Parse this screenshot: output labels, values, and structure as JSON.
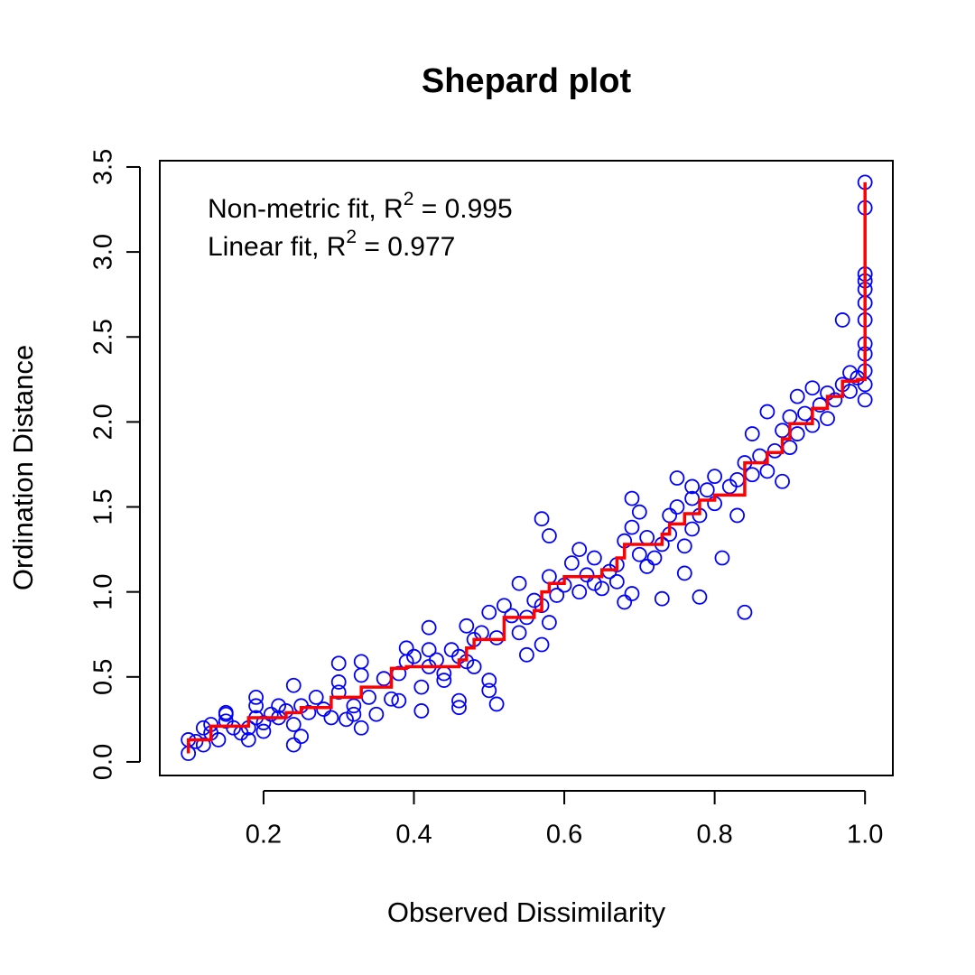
{
  "chart_data": {
    "type": "scatter",
    "title": "Shepard plot",
    "x_label": "Observed Dissimilarity",
    "y_label": "Ordination Distance",
    "annotations": [
      {
        "prefix": "Non-metric fit, R",
        "superscript": "2",
        "suffix": " = 0.995"
      },
      {
        "prefix": "Linear fit, R",
        "superscript": "2",
        "suffix": " = 0.977"
      }
    ],
    "xlim": [
      0.062,
      1.037
    ],
    "ylim": [
      -0.08,
      3.537
    ],
    "xticks": [
      0.2,
      0.4,
      0.6,
      0.8,
      {
        "value": 1,
        "label": "1.0"
      }
    ],
    "yticks": [
      {
        "value": 0,
        "label": "0.0"
      },
      0.5,
      {
        "value": 1,
        "label": "1.0"
      },
      1.5,
      {
        "value": 2,
        "label": "2.0"
      },
      2.5,
      {
        "value": 3,
        "label": "3.0"
      },
      3.5
    ],
    "series": [
      {
        "type": "scatter",
        "color": "#0000ff",
        "x": [
          0.1,
          0.1,
          0.11,
          0.12,
          0.12,
          0.13,
          0.13,
          0.14,
          0.15,
          0.15,
          0.15,
          0.16,
          0.17,
          0.18,
          0.18,
          0.19,
          0.19,
          0.19,
          0.2,
          0.2,
          0.21,
          0.22,
          0.22,
          0.23,
          0.24,
          0.24,
          0.24,
          0.25,
          0.25,
          0.26,
          0.27,
          0.28,
          0.29,
          0.3,
          0.3,
          0.3,
          0.31,
          0.32,
          0.32,
          0.33,
          0.33,
          0.34,
          0.33,
          0.35,
          0.36,
          0.37,
          0.38,
          0.38,
          0.39,
          0.39,
          0.4,
          0.41,
          0.41,
          0.42,
          0.42,
          0.42,
          0.43,
          0.44,
          0.44,
          0.45,
          0.46,
          0.46,
          0.46,
          0.47,
          0.47,
          0.48,
          0.48,
          0.49,
          0.5,
          0.5,
          0.5,
          0.51,
          0.51,
          0.52,
          0.53,
          0.54,
          0.54,
          0.55,
          0.55,
          0.56,
          0.57,
          0.57,
          0.57,
          0.58,
          0.58,
          0.58,
          0.59,
          0.6,
          0.61,
          0.62,
          0.62,
          0.63,
          0.64,
          0.64,
          0.65,
          0.66,
          0.67,
          0.67,
          0.68,
          0.68,
          0.69,
          0.69,
          0.69,
          0.7,
          0.7,
          0.71,
          0.71,
          0.72,
          0.73,
          0.73,
          0.74,
          0.74,
          0.75,
          0.75,
          0.76,
          0.76,
          0.77,
          0.77,
          0.77,
          0.78,
          0.78,
          0.79,
          0.8,
          0.8,
          0.81,
          0.82,
          0.83,
          0.83,
          0.84,
          0.84,
          0.85,
          0.85,
          0.86,
          0.87,
          0.87,
          0.88,
          0.89,
          0.89,
          0.9,
          0.9,
          0.91,
          0.91,
          0.92,
          0.93,
          0.93,
          0.94,
          0.95,
          0.95,
          0.96,
          0.97,
          0.97,
          0.98,
          0.98,
          0.99,
          1,
          1,
          1,
          1,
          1,
          1,
          1,
          1,
          1,
          1,
          1,
          1
        ],
        "values": [
          0.05,
          0.13,
          0.12,
          0.2,
          0.1,
          0.17,
          0.22,
          0.13,
          0.28,
          0.29,
          0.24,
          0.2,
          0.17,
          0.13,
          0.2,
          0.38,
          0.33,
          0.26,
          0.23,
          0.18,
          0.28,
          0.26,
          0.33,
          0.3,
          0.1,
          0.45,
          0.22,
          0.33,
          0.15,
          0.29,
          0.38,
          0.31,
          0.26,
          0.58,
          0.47,
          0.41,
          0.25,
          0.33,
          0.28,
          0.51,
          0.59,
          0.38,
          0.2,
          0.28,
          0.49,
          0.37,
          0.36,
          0.52,
          0.67,
          0.59,
          0.62,
          0.3,
          0.44,
          0.56,
          0.79,
          0.66,
          0.6,
          0.52,
          0.48,
          0.66,
          0.62,
          0.32,
          0.36,
          0.8,
          0.59,
          0.56,
          0.72,
          0.76,
          0.48,
          0.42,
          0.88,
          0.73,
          0.34,
          0.92,
          0.86,
          0.76,
          1.05,
          0.85,
          0.63,
          0.95,
          0.92,
          0.69,
          1.43,
          1.09,
          0.82,
          1.33,
          0.98,
          1.04,
          1.17,
          1.25,
          1.0,
          1.1,
          1.05,
          1.2,
          1.02,
          1.12,
          1.16,
          1.06,
          0.94,
          1.3,
          1.38,
          1.55,
          0.99,
          1.22,
          1.47,
          1.32,
          1.15,
          1.2,
          0.96,
          1.28,
          1.45,
          1.34,
          1.5,
          1.67,
          1.11,
          1.27,
          1.62,
          1.55,
          1.37,
          0.97,
          1.45,
          1.6,
          1.52,
          1.68,
          1.2,
          1.62,
          1.45,
          1.66,
          0.88,
          1.76,
          1.93,
          1.69,
          1.8,
          2.06,
          1.71,
          1.83,
          1.65,
          1.95,
          2.03,
          1.85,
          2.15,
          1.93,
          2.05,
          1.98,
          2.2,
          2.1,
          2.02,
          2.17,
          2.13,
          2.22,
          2.6,
          2.29,
          2.18,
          2.26,
          2.13,
          2.22,
          2.3,
          2.4,
          2.46,
          2.6,
          2.7,
          2.78,
          2.83,
          2.87,
          3.26,
          3.41
        ]
      },
      {
        "type": "line",
        "color": "#ff0000",
        "x": [
          0.1,
          0.1,
          0.13,
          0.13,
          0.18,
          0.18,
          0.23,
          0.23,
          0.25,
          0.25,
          0.29,
          0.29,
          0.33,
          0.33,
          0.37,
          0.37,
          0.39,
          0.39,
          0.46,
          0.46,
          0.47,
          0.47,
          0.48,
          0.48,
          0.52,
          0.52,
          0.56,
          0.56,
          0.57,
          0.57,
          0.58,
          0.58,
          0.6,
          0.6,
          0.65,
          0.65,
          0.67,
          0.67,
          0.68,
          0.68,
          0.73,
          0.73,
          0.74,
          0.74,
          0.76,
          0.76,
          0.78,
          0.78,
          0.8,
          0.8,
          0.84,
          0.84,
          0.87,
          0.87,
          0.89,
          0.89,
          0.9,
          0.9,
          0.93,
          0.93,
          0.95,
          0.95,
          0.97,
          0.97,
          0.99,
          0.99,
          1,
          1
        ],
        "values": [
          0.05,
          0.13,
          0.13,
          0.21,
          0.21,
          0.26,
          0.26,
          0.29,
          0.29,
          0.32,
          0.32,
          0.38,
          0.38,
          0.44,
          0.44,
          0.55,
          0.55,
          0.56,
          0.56,
          0.6,
          0.6,
          0.67,
          0.67,
          0.72,
          0.72,
          0.85,
          0.85,
          0.89,
          0.89,
          1.0,
          1.0,
          1.05,
          1.05,
          1.09,
          1.09,
          1.13,
          1.13,
          1.2,
          1.2,
          1.28,
          1.28,
          1.34,
          1.34,
          1.4,
          1.4,
          1.46,
          1.46,
          1.54,
          1.54,
          1.57,
          1.57,
          1.76,
          1.76,
          1.82,
          1.82,
          1.9,
          1.9,
          1.99,
          1.99,
          2.08,
          2.08,
          2.15,
          2.15,
          2.24,
          2.24,
          2.25,
          2.25,
          3.41
        ]
      }
    ]
  }
}
